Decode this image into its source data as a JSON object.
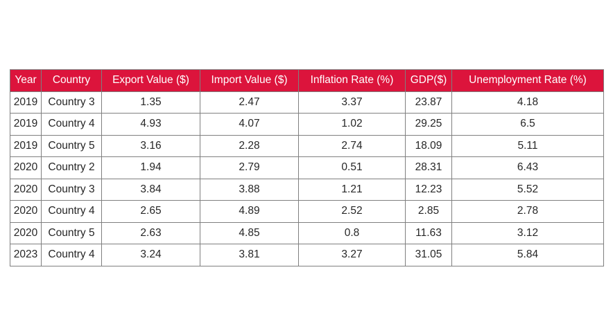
{
  "chart_data": {
    "type": "table",
    "header_color": "#dc143c",
    "columns": [
      "Year",
      "Country",
      "Export Value ($)",
      "Import Value ($)",
      "Inflation Rate (%)",
      "GDP($)",
      "Unemployment Rate (%)"
    ],
    "rows": [
      [
        "2019",
        "Country 3",
        "1.35",
        "2.47",
        "3.37",
        "23.87",
        "4.18"
      ],
      [
        "2019",
        "Country 4",
        "4.93",
        "4.07",
        "1.02",
        "29.25",
        "6.5"
      ],
      [
        "2019",
        "Country 5",
        "3.16",
        "2.28",
        "2.74",
        "18.09",
        "5.11"
      ],
      [
        "2020",
        "Country 2",
        "1.94",
        "2.79",
        "0.51",
        "28.31",
        "6.43"
      ],
      [
        "2020",
        "Country 3",
        "3.84",
        "3.88",
        "1.21",
        "12.23",
        "5.52"
      ],
      [
        "2020",
        "Country 4",
        "2.65",
        "4.89",
        "2.52",
        "2.85",
        "2.78"
      ],
      [
        "2020",
        "Country 5",
        "2.63",
        "4.85",
        "0.8",
        "11.63",
        "3.12"
      ],
      [
        "2023",
        "Country 4",
        "3.24",
        "3.81",
        "3.27",
        "31.05",
        "5.84"
      ]
    ]
  }
}
